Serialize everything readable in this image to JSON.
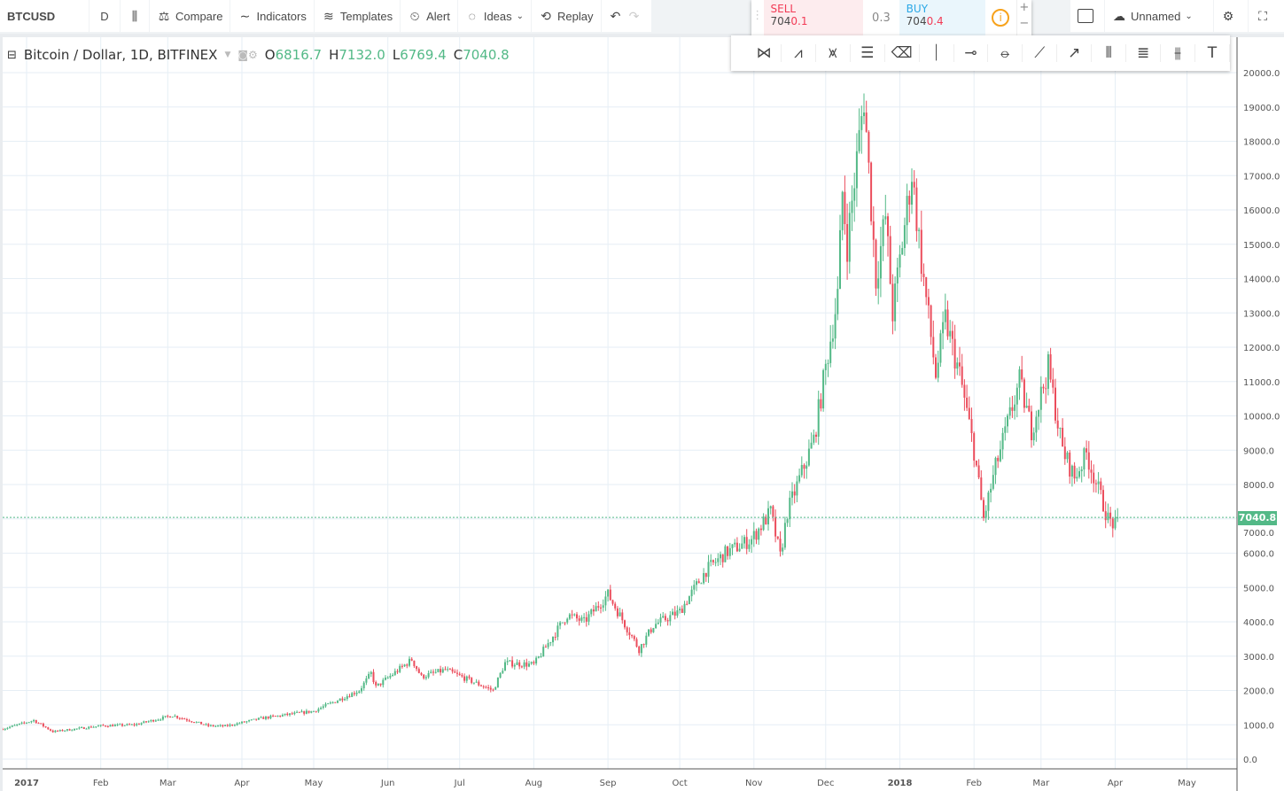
{
  "toolbar": {
    "symbol": "BTCUSD",
    "interval": "D",
    "compare": "Compare",
    "indicators": "Indicators",
    "templates": "Templates",
    "alert": "Alert",
    "ideas": "Ideas",
    "replay": "Replay",
    "layout_name": "Unnamed"
  },
  "trade": {
    "sell_label": "SELL",
    "sell_price_main": "704",
    "sell_price_tail": "0.1",
    "spread": "0.3",
    "buy_label": "BUY",
    "buy_price_main": "704",
    "buy_price_tail": "0.4"
  },
  "legend": {
    "title": "Bitcoin / Dollar, 1D, BITFINEX",
    "o_label": "O",
    "o": "6816.7",
    "h_label": "H",
    "h": "7132.0",
    "l_label": "L",
    "l": "6769.4",
    "c_label": "C",
    "c": "7040.8"
  },
  "drawing_tools": [
    "pattern-icon",
    "xabcd-icon",
    "head-shoulders-icon",
    "parallel-lines-icon",
    "eraser-icon",
    "vertical-line-icon",
    "horizontal-ray-icon",
    "horizontal-line-icon",
    "trend-line-icon",
    "arrow-icon",
    "pitchfork-icon",
    "fib-icon",
    "gann-icon",
    "text-icon"
  ],
  "colors": {
    "up": "#53b987",
    "down": "#eb4d5c",
    "grid": "#e6eef5"
  },
  "chart_data": {
    "type": "candlestick",
    "ylim": [
      0,
      20000
    ],
    "y_ticks": [
      "0.0",
      "1000.0",
      "2000.0",
      "3000.0",
      "4000.0",
      "5000.0",
      "6000.0",
      "7000.0",
      "8000.0",
      "9000.0",
      "10000.0",
      "11000.0",
      "12000.0",
      "13000.0",
      "14000.0",
      "15000.0",
      "16000.0",
      "17000.0",
      "18000.0",
      "19000.0",
      "20000.0"
    ],
    "x_ticks": [
      [
        "2017-01-01",
        "2017"
      ],
      [
        "2017-02-01",
        "Feb"
      ],
      [
        "2017-03-01",
        "Mar"
      ],
      [
        "2017-04-01",
        "Apr"
      ],
      [
        "2017-05-01",
        "May"
      ],
      [
        "2017-06-01",
        "Jun"
      ],
      [
        "2017-07-01",
        "Jul"
      ],
      [
        "2017-08-01",
        "Aug"
      ],
      [
        "2017-09-01",
        "Sep"
      ],
      [
        "2017-10-01",
        "Oct"
      ],
      [
        "2017-11-01",
        "Nov"
      ],
      [
        "2017-12-01",
        "Dec"
      ],
      [
        "2018-01-01",
        "2018"
      ],
      [
        "2018-02-01",
        "Feb"
      ],
      [
        "2018-03-01",
        "Mar"
      ],
      [
        "2018-04-01",
        "Apr"
      ],
      [
        "2018-05-01",
        "May"
      ]
    ],
    "last_price": "7040.8",
    "approx_closes": [
      [
        "2016-12-22",
        880
      ],
      [
        "2017-01-04",
        1130
      ],
      [
        "2017-01-12",
        800
      ],
      [
        "2017-02-01",
        970
      ],
      [
        "2017-02-15",
        1000
      ],
      [
        "2017-03-03",
        1270
      ],
      [
        "2017-03-18",
        970
      ],
      [
        "2017-03-25",
        960
      ],
      [
        "2017-04-10",
        1200
      ],
      [
        "2017-05-01",
        1400
      ],
      [
        "2017-05-20",
        2000
      ],
      [
        "2017-05-25",
        2500
      ],
      [
        "2017-05-27",
        2100
      ],
      [
        "2017-06-11",
        2900
      ],
      [
        "2017-06-15",
        2400
      ],
      [
        "2017-06-25",
        2600
      ],
      [
        "2017-07-15",
        2000
      ],
      [
        "2017-07-20",
        2800
      ],
      [
        "2017-08-01",
        2750
      ],
      [
        "2017-08-15",
        4200
      ],
      [
        "2017-08-22",
        4000
      ],
      [
        "2017-09-01",
        4800
      ],
      [
        "2017-09-14",
        3200
      ],
      [
        "2017-09-20",
        3900
      ],
      [
        "2017-10-01",
        4300
      ],
      [
        "2017-10-12",
        5500
      ],
      [
        "2017-10-20",
        6000
      ],
      [
        "2017-10-31",
        6400
      ],
      [
        "2017-11-08",
        7200
      ],
      [
        "2017-11-12",
        5900
      ],
      [
        "2017-11-15",
        7200
      ],
      [
        "2017-11-26",
        9300
      ],
      [
        "2017-12-06",
        13500
      ],
      [
        "2017-12-08",
        16500
      ],
      [
        "2017-12-10",
        15000
      ],
      [
        "2017-12-17",
        19300
      ],
      [
        "2017-12-22",
        14000
      ],
      [
        "2017-12-26",
        15800
      ],
      [
        "2017-12-29",
        13000
      ],
      [
        "2018-01-06",
        17100
      ],
      [
        "2018-01-10",
        14500
      ],
      [
        "2018-01-16",
        11200
      ],
      [
        "2018-01-20",
        12800
      ],
      [
        "2018-01-26",
        11200
      ],
      [
        "2018-02-01",
        9000
      ],
      [
        "2018-02-05",
        7000
      ],
      [
        "2018-02-10",
        8500
      ],
      [
        "2018-02-20",
        11000
      ],
      [
        "2018-02-25",
        9600
      ],
      [
        "2018-03-04",
        11400
      ],
      [
        "2018-03-10",
        9000
      ],
      [
        "2018-03-15",
        8200
      ],
      [
        "2018-03-20",
        8900
      ],
      [
        "2018-03-29",
        7000
      ],
      [
        "2018-04-01",
        6800
      ],
      [
        "2018-04-02",
        7040
      ]
    ]
  }
}
